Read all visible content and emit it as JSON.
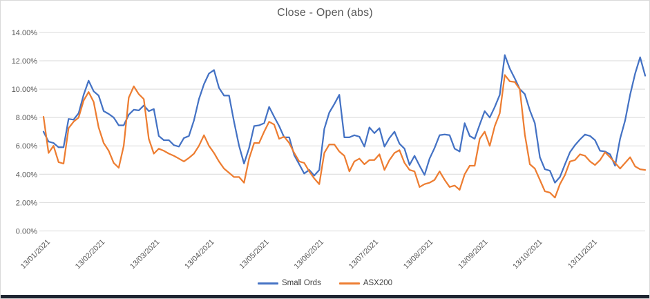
{
  "chart": {
    "title": "Close - Open (abs)",
    "legend": [
      {
        "label": "Small Ords",
        "color": "#4472C4"
      },
      {
        "label": "ASX200",
        "color": "#ED7D31"
      }
    ]
  },
  "chart_data": {
    "type": "line",
    "title": "Close - Open (abs)",
    "grid": true,
    "legend_position": "bottom",
    "y_axis": {
      "unit": "%",
      "min": 0,
      "max": 14,
      "tick_step": 2,
      "tick_labels": [
        "0.00%",
        "2.00%",
        "4.00%",
        "6.00%",
        "8.00%",
        "10.00%",
        "12.00%",
        "14.00%"
      ]
    },
    "x_axis": {
      "tick_labels": [
        "13/01/2021",
        "13/02/2021",
        "13/03/2021",
        "13/04/2021",
        "13/05/2021",
        "13/06/2021",
        "13/07/2021",
        "13/08/2021",
        "13/09/2021",
        "13/10/2021",
        "13/11/2021"
      ],
      "label_rotation_deg": 45
    },
    "series": [
      {
        "name": "Small Ords",
        "color": "#4472C4",
        "values": [
          7.0,
          6.3,
          6.2,
          5.9,
          5.9,
          7.9,
          7.85,
          8.3,
          9.6,
          10.6,
          9.85,
          9.55,
          8.45,
          8.25,
          8.0,
          7.45,
          7.45,
          8.2,
          8.55,
          8.5,
          8.85,
          8.45,
          8.6,
          6.7,
          6.4,
          6.4,
          6.05,
          5.95,
          6.55,
          6.7,
          7.8,
          9.3,
          10.35,
          11.1,
          11.35,
          10.1,
          9.55,
          9.55,
          7.7,
          6.0,
          4.75,
          5.85,
          7.4,
          7.45,
          7.6,
          8.75,
          8.05,
          7.4,
          6.6,
          6.6,
          5.35,
          4.7,
          4.05,
          4.3,
          3.9,
          4.3,
          7.2,
          8.35,
          8.95,
          9.6,
          6.6,
          6.6,
          6.75,
          6.65,
          5.95,
          7.3,
          6.9,
          7.25,
          5.95,
          6.55,
          7.0,
          6.15,
          5.8,
          4.65,
          5.3,
          4.6,
          3.95,
          5.1,
          5.85,
          6.75,
          6.8,
          6.75,
          5.8,
          5.6,
          7.6,
          6.7,
          6.5,
          7.5,
          8.45,
          8.0,
          8.75,
          9.6,
          12.4,
          11.45,
          10.75,
          10.0,
          9.65,
          8.5,
          7.6,
          5.2,
          4.35,
          4.25,
          3.4,
          3.8,
          4.7,
          5.55,
          6.05,
          6.45,
          6.8,
          6.7,
          6.4,
          5.65,
          5.6,
          5.4,
          4.6,
          6.5,
          7.8,
          9.6,
          11.1,
          12.25,
          10.95
        ]
      },
      {
        "name": "ASX200",
        "color": "#ED7D31",
        "values": [
          8.05,
          5.5,
          6.0,
          4.85,
          4.75,
          7.25,
          7.7,
          8.0,
          9.2,
          9.8,
          9.1,
          7.3,
          6.2,
          5.65,
          4.8,
          4.45,
          6.0,
          9.4,
          10.2,
          9.65,
          9.3,
          6.5,
          5.45,
          5.8,
          5.65,
          5.45,
          5.3,
          5.1,
          4.9,
          5.15,
          5.45,
          6.0,
          6.75,
          6.0,
          5.5,
          4.9,
          4.4,
          4.1,
          3.8,
          3.8,
          3.4,
          5.1,
          6.2,
          6.2,
          7.0,
          7.7,
          7.5,
          6.5,
          6.65,
          6.2,
          5.5,
          4.9,
          4.8,
          4.2,
          3.7,
          3.3,
          5.5,
          6.1,
          6.1,
          5.6,
          5.3,
          4.2,
          4.9,
          5.1,
          4.7,
          5.0,
          5.0,
          5.4,
          4.3,
          5.0,
          5.5,
          5.7,
          4.8,
          4.3,
          4.2,
          3.1,
          3.3,
          3.4,
          3.6,
          4.2,
          3.6,
          3.1,
          3.2,
          2.9,
          4.0,
          4.6,
          4.6,
          6.5,
          7.0,
          6.0,
          7.4,
          8.3,
          11.0,
          10.55,
          10.5,
          10.0,
          6.8,
          4.7,
          4.4,
          3.6,
          2.8,
          2.7,
          2.35,
          3.3,
          3.95,
          4.9,
          5.0,
          5.4,
          5.3,
          4.9,
          4.65,
          5.0,
          5.55,
          5.2,
          4.8,
          4.4,
          4.8,
          5.2,
          4.55,
          4.35,
          4.3
        ]
      }
    ]
  },
  "colors": {
    "gridline": "#d9d9d9",
    "axis_text": "#595959",
    "legend_text": "#404040",
    "bottom_strip": "#1e2531"
  }
}
